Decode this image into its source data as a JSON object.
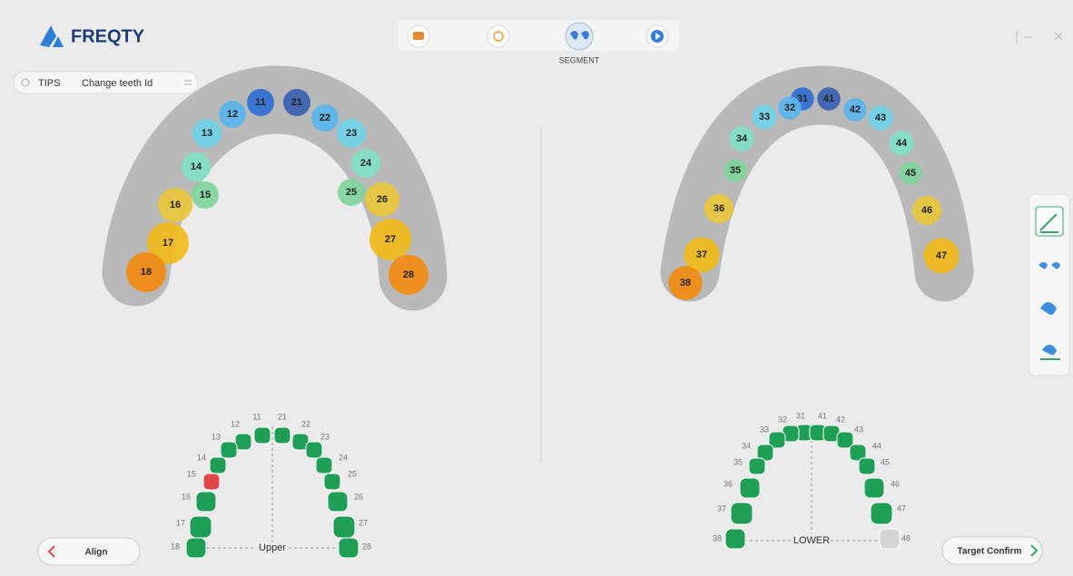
{
  "header": {
    "logo": "FREQTY",
    "step_label": "SEGMENT"
  },
  "tips": {
    "label": "TIPS",
    "text": "Change teeth Id"
  },
  "upper_scan": {
    "teeth": [
      "11",
      "12",
      "13",
      "14",
      "15",
      "16",
      "17",
      "18",
      "21",
      "22",
      "23",
      "24",
      "25",
      "26",
      "27",
      "28"
    ]
  },
  "lower_scan": {
    "teeth": [
      "31",
      "32",
      "33",
      "34",
      "35",
      "36",
      "37",
      "38",
      "41",
      "42",
      "43",
      "44",
      "45",
      "46",
      "47"
    ]
  },
  "upper_chart": {
    "title": "Upper",
    "teeth": [
      "11",
      "12",
      "13",
      "14",
      "15",
      "16",
      "17",
      "18",
      "21",
      "22",
      "23",
      "24",
      "25",
      "26",
      "27",
      "28"
    ]
  },
  "lower_chart": {
    "title": "LOWER",
    "teeth": [
      "31",
      "32",
      "33",
      "34",
      "35",
      "36",
      "37",
      "38",
      "41",
      "42",
      "43",
      "44",
      "45",
      "46",
      "47",
      "48"
    ]
  },
  "buttons": {
    "back": "Align",
    "next": "Target Confirm"
  }
}
